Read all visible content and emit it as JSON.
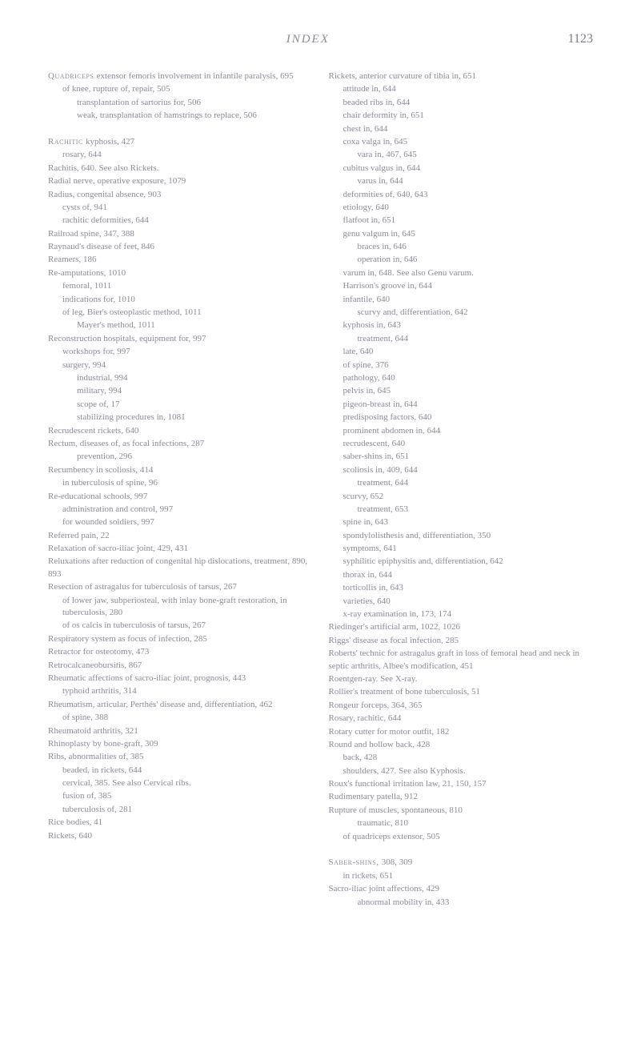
{
  "header": {
    "title": "INDEX",
    "page_number": "1123"
  },
  "left_column": [
    {
      "text": "Quadriceps extensor femoris involvement in infantile paralysis, 695",
      "indent": 0,
      "caps": true
    },
    {
      "text": "of knee, rupture of, repair, 505",
      "indent": 1
    },
    {
      "text": "transplantation of sartorius for, 506",
      "indent": 2
    },
    {
      "text": "weak, transplantation of hamstrings to replace, 506",
      "indent": 2
    },
    {
      "text": "",
      "indent": 0
    },
    {
      "text": "Rachitic kyphosis, 427",
      "indent": 0,
      "caps": true
    },
    {
      "text": "rosary, 644",
      "indent": 1
    },
    {
      "text": "Rachitis, 640. See also Rickets.",
      "indent": 0
    },
    {
      "text": "Radial nerve, operative exposure, 1079",
      "indent": 0
    },
    {
      "text": "Radius, congenital absence, 903",
      "indent": 0
    },
    {
      "text": "cysts of, 941",
      "indent": 1
    },
    {
      "text": "rachitic deformities, 644",
      "indent": 1
    },
    {
      "text": "Railroad spine, 347, 388",
      "indent": 0
    },
    {
      "text": "Raynaud's disease of feet, 846",
      "indent": 0
    },
    {
      "text": "Reamers, 186",
      "indent": 0
    },
    {
      "text": "Re-amputations, 1010",
      "indent": 0
    },
    {
      "text": "femoral, 1011",
      "indent": 1
    },
    {
      "text": "indications for, 1010",
      "indent": 1
    },
    {
      "text": "of leg, Bier's osteoplastic method, 1011",
      "indent": 1
    },
    {
      "text": "Mayer's method, 1011",
      "indent": 2
    },
    {
      "text": "Reconstruction hospitals, equipment for, 997",
      "indent": 0
    },
    {
      "text": "workshops for, 997",
      "indent": 1
    },
    {
      "text": "surgery, 994",
      "indent": 1
    },
    {
      "text": "industrial, 994",
      "indent": 2
    },
    {
      "text": "military, 994",
      "indent": 2
    },
    {
      "text": "scope of, 17",
      "indent": 2
    },
    {
      "text": "stabilizing procedures in, 1081",
      "indent": 2
    },
    {
      "text": "Recrudescent rickets, 640",
      "indent": 0
    },
    {
      "text": "Rectum, diseases of, as focal infections, 287",
      "indent": 0
    },
    {
      "text": "prevention, 296",
      "indent": 2
    },
    {
      "text": "Recumbency in scoliosis, 414",
      "indent": 0
    },
    {
      "text": "in tuberculosis of spine, 96",
      "indent": 1
    },
    {
      "text": "Re-educational schools, 997",
      "indent": 0
    },
    {
      "text": "administration and control, 997",
      "indent": 1
    },
    {
      "text": "for wounded soldiers, 997",
      "indent": 1
    },
    {
      "text": "Referred pain, 22",
      "indent": 0
    },
    {
      "text": "Relaxation of sacro-iliac joint, 429, 431",
      "indent": 0
    },
    {
      "text": "Reluxations after reduction of congenital hip dislocations, treatment, 890, 893",
      "indent": 0
    },
    {
      "text": "Resection of astragalus for tuberculosis of tarsus, 267",
      "indent": 0
    },
    {
      "text": "of lower jaw, subperiosteal, with inlay bone-graft restoration, in tuberculosis, 280",
      "indent": 1
    },
    {
      "text": "of os calcis in tuberculosis of tarsus, 267",
      "indent": 1
    },
    {
      "text": "Respiratory system as focus of infection, 285",
      "indent": 0
    },
    {
      "text": "Retractor for osteotomy, 473",
      "indent": 0
    },
    {
      "text": "Retrocalcaneobursitis, 867",
      "indent": 0
    },
    {
      "text": "Rheumatic affections of sacro-iliac joint, prognosis, 443",
      "indent": 0
    },
    {
      "text": "typhoid arthritis, 314",
      "indent": 1
    },
    {
      "text": "Rheumatism, articular, Perthés' disease and, differentiation, 462",
      "indent": 0
    },
    {
      "text": "of spine, 388",
      "indent": 1
    },
    {
      "text": "Rheumatoid arthritis, 321",
      "indent": 0
    },
    {
      "text": "Rhinoplasty by bone-graft, 309",
      "indent": 0
    },
    {
      "text": "Ribs, abnormalities of, 385",
      "indent": 0
    },
    {
      "text": "beaded, in rickets, 644",
      "indent": 1
    },
    {
      "text": "cervical, 385. See also Cervical ribs.",
      "indent": 1
    },
    {
      "text": "fusion of, 385",
      "indent": 1
    },
    {
      "text": "tuberculosis of, 281",
      "indent": 1
    },
    {
      "text": "Rice bodies, 41",
      "indent": 0
    },
    {
      "text": "Rickets, 640",
      "indent": 0
    }
  ],
  "right_column": [
    {
      "text": "Rickets, anterior curvature of tibia in, 651",
      "indent": 0
    },
    {
      "text": "attitude in, 644",
      "indent": 1
    },
    {
      "text": "beaded ribs in, 644",
      "indent": 1
    },
    {
      "text": "chair deformity in, 651",
      "indent": 1
    },
    {
      "text": "chest in, 644",
      "indent": 1
    },
    {
      "text": "coxa valga in, 645",
      "indent": 1
    },
    {
      "text": "vara in, 467, 645",
      "indent": 2
    },
    {
      "text": "cubitus valgus in, 644",
      "indent": 1
    },
    {
      "text": "varus in, 644",
      "indent": 2
    },
    {
      "text": "deformities of, 640, 643",
      "indent": 1
    },
    {
      "text": "etiology, 640",
      "indent": 1
    },
    {
      "text": "flatfoot in, 651",
      "indent": 1
    },
    {
      "text": "genu valgum in, 645",
      "indent": 1
    },
    {
      "text": "braces in, 646",
      "indent": 2
    },
    {
      "text": "operation in, 646",
      "indent": 2
    },
    {
      "text": "varum in, 648. See also Genu varum.",
      "indent": 1
    },
    {
      "text": "Harrison's groove in, 644",
      "indent": 1
    },
    {
      "text": "infantile, 640",
      "indent": 1
    },
    {
      "text": "scurvy and, differentiation, 642",
      "indent": 2
    },
    {
      "text": "kyphosis in, 643",
      "indent": 1
    },
    {
      "text": "treatment, 644",
      "indent": 2
    },
    {
      "text": "late, 640",
      "indent": 1
    },
    {
      "text": "of spine, 376",
      "indent": 1
    },
    {
      "text": "pathology, 640",
      "indent": 1
    },
    {
      "text": "pelvis in, 645",
      "indent": 1
    },
    {
      "text": "pigeon-breast in, 644",
      "indent": 1
    },
    {
      "text": "predisposing factors, 640",
      "indent": 1
    },
    {
      "text": "prominent abdomen in, 644",
      "indent": 1
    },
    {
      "text": "recrudescent, 640",
      "indent": 1
    },
    {
      "text": "saber-shins in, 651",
      "indent": 1
    },
    {
      "text": "scoliosis in, 409, 644",
      "indent": 1
    },
    {
      "text": "treatment, 644",
      "indent": 2
    },
    {
      "text": "scurvy, 652",
      "indent": 1
    },
    {
      "text": "treatment, 653",
      "indent": 2
    },
    {
      "text": "spine in, 643",
      "indent": 1
    },
    {
      "text": "spondylolisthesis and, differentiation, 350",
      "indent": 1
    },
    {
      "text": "symptoms, 641",
      "indent": 1
    },
    {
      "text": "syphilitic epiphysitis and, differentiation, 642",
      "indent": 1
    },
    {
      "text": "thorax in, 644",
      "indent": 1
    },
    {
      "text": "torticollis in, 643",
      "indent": 1
    },
    {
      "text": "varieties, 640",
      "indent": 1
    },
    {
      "text": "x-ray examination in, 173, 174",
      "indent": 1
    },
    {
      "text": "Riedinger's artificial arm, 1022, 1026",
      "indent": 0
    },
    {
      "text": "Riggs' disease as focal infection, 285",
      "indent": 0
    },
    {
      "text": "Roberts' technic for astragalus graft in loss of femoral head and neck in septic arthritis, Albee's modification, 451",
      "indent": 0
    },
    {
      "text": "Roentgen-ray. See X-ray.",
      "indent": 0
    },
    {
      "text": "Rollier's treatment of bone tuberculosis, 51",
      "indent": 0
    },
    {
      "text": "Rongeur forceps, 364, 365",
      "indent": 0
    },
    {
      "text": "Rosary, rachitic, 644",
      "indent": 0
    },
    {
      "text": "Rotary cutter for motor outfit, 182",
      "indent": 0
    },
    {
      "text": "Round and hollow back, 428",
      "indent": 0
    },
    {
      "text": "back, 428",
      "indent": 1
    },
    {
      "text": "shoulders, 427. See also Kyphosis.",
      "indent": 1
    },
    {
      "text": "Roux's functional irritation law, 21, 150, 157",
      "indent": 0
    },
    {
      "text": "Rudimentary patella, 912",
      "indent": 0
    },
    {
      "text": "Rupture of muscles, spontaneous, 810",
      "indent": 0
    },
    {
      "text": "traumatic, 810",
      "indent": 2
    },
    {
      "text": "of quadriceps extensor, 505",
      "indent": 1
    },
    {
      "text": "",
      "indent": 0
    },
    {
      "text": "Saber-shins, 308, 309",
      "indent": 0,
      "caps": true
    },
    {
      "text": "in rickets, 651",
      "indent": 1
    },
    {
      "text": "Sacro-iliac joint affections, 429",
      "indent": 0
    },
    {
      "text": "abnormal mobility in, 433",
      "indent": 2
    }
  ]
}
